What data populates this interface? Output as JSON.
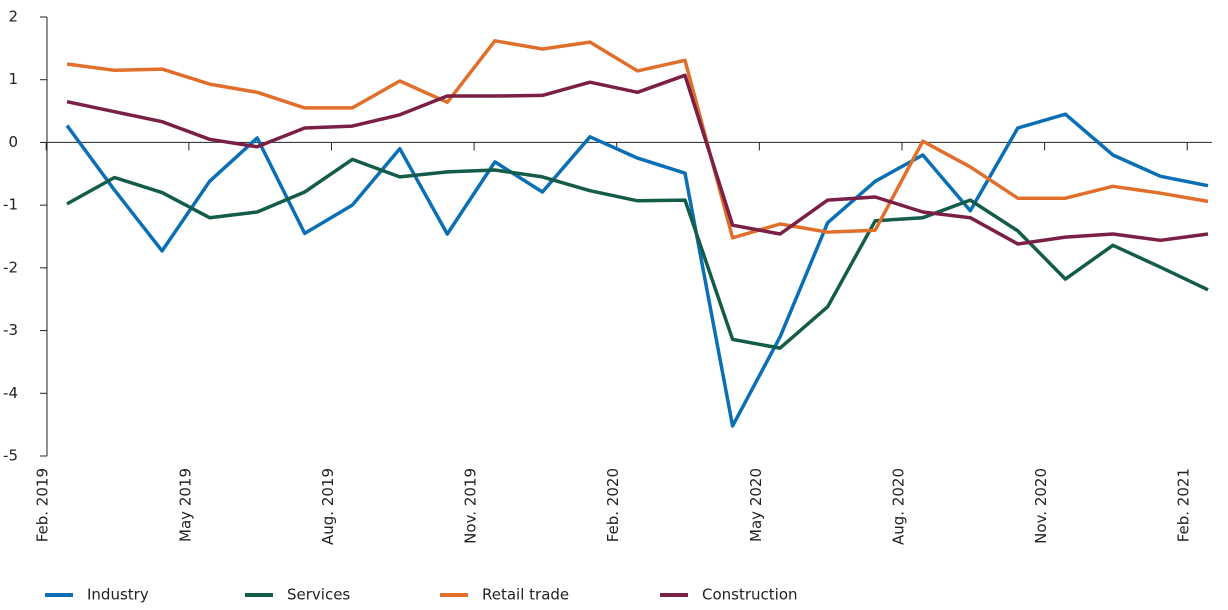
{
  "chart_data": {
    "type": "line",
    "categories": [
      "Feb. 2019",
      null,
      null,
      "May 2019",
      null,
      null,
      "Aug. 2019",
      null,
      null,
      "Nov. 2019",
      null,
      null,
      "Feb. 2020",
      null,
      null,
      "May 2020",
      null,
      null,
      "Aug. 2020",
      null,
      null,
      "Nov. 2020",
      null,
      null,
      "Feb. 2021"
    ],
    "series": [
      {
        "name": "Industry",
        "color": "#0a6fb4",
        "values": [
          0.27,
          -0.76,
          -1.73,
          -0.62,
          0.07,
          -1.45,
          -1.0,
          -0.1,
          -1.46,
          -0.31,
          -0.79,
          0.09,
          -0.25,
          -0.49,
          -4.52,
          -3.1,
          -1.28,
          -0.62,
          -0.2,
          -1.09,
          0.23,
          0.45,
          -0.2,
          -0.54,
          -0.69
        ]
      },
      {
        "name": "Services",
        "color": "#145c4a",
        "values": [
          -0.98,
          -0.56,
          -0.8,
          -1.2,
          -1.11,
          -0.79,
          -0.27,
          -0.55,
          -0.47,
          -0.44,
          -0.55,
          -0.77,
          -0.93,
          -0.92,
          -3.14,
          -3.28,
          -2.62,
          -1.25,
          -1.2,
          -0.92,
          -1.41,
          -2.18,
          -1.64,
          -1.99,
          -2.35
        ]
      },
      {
        "name": "Retail trade",
        "color": "#e06f2b",
        "values": [
          1.25,
          1.15,
          1.17,
          0.93,
          0.8,
          0.55,
          0.55,
          0.98,
          0.64,
          1.62,
          1.49,
          1.6,
          1.14,
          1.31,
          -1.52,
          -1.3,
          -1.43,
          -1.4,
          0.02,
          -0.39,
          -0.89,
          -0.89,
          -0.7,
          -0.81,
          -0.94
        ]
      },
      {
        "name": "Construction",
        "color": "#7a1f45",
        "values": [
          0.65,
          0.49,
          0.33,
          0.05,
          -0.07,
          0.23,
          0.26,
          0.44,
          0.74,
          0.74,
          0.75,
          0.96,
          0.8,
          1.07,
          -1.32,
          -1.46,
          -0.92,
          -0.87,
          -1.11,
          -1.2,
          -1.62,
          -1.51,
          -1.46,
          -1.56,
          -1.46
        ]
      }
    ],
    "ylim": [
      -5,
      2
    ],
    "yticks": [
      2,
      1,
      0,
      -1,
      -2,
      -3,
      -4,
      -5
    ]
  }
}
